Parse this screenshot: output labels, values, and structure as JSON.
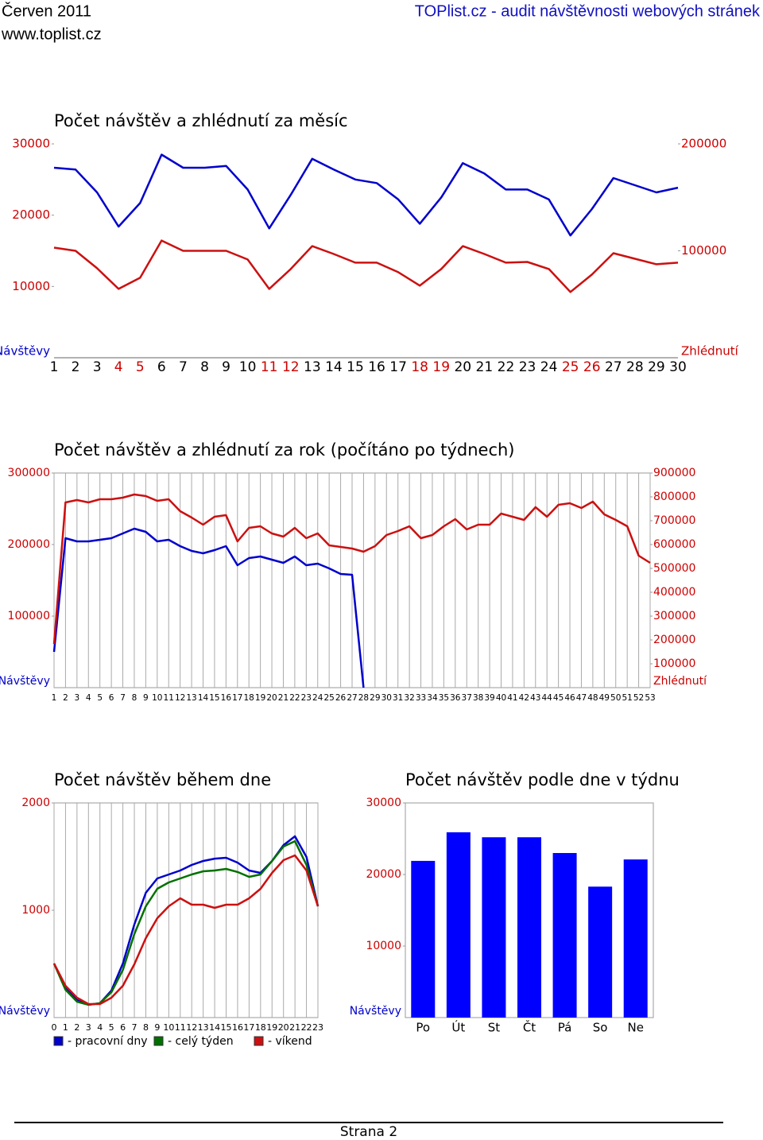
{
  "header": {
    "month": "Červen 2011",
    "site": "TOPlist.cz - audit návštěvnosti webových stránek",
    "url": "www.toplist.cz"
  },
  "footer": {
    "page": "Strana 2"
  },
  "chart_data": [
    {
      "type": "line",
      "title": "Počet návštěv a zhlédnutí za měsíc",
      "y_label": "Návštěvy",
      "y2_label": "Zhlédnutí",
      "categories": [
        "1",
        "2",
        "3",
        "4",
        "5",
        "6",
        "7",
        "8",
        "9",
        "10",
        "11",
        "12",
        "13",
        "14",
        "15",
        "16",
        "17",
        "18",
        "19",
        "20",
        "21",
        "22",
        "23",
        "24",
        "25",
        "26",
        "27",
        "28",
        "29",
        "30"
      ],
      "category_colors": [
        "#000",
        "#000",
        "#000",
        "#cc0000",
        "#cc0000",
        "#000",
        "#000",
        "#000",
        "#000",
        "#000",
        "#cc0000",
        "#cc0000",
        "#000",
        "#000",
        "#000",
        "#000",
        "#000",
        "#cc0000",
        "#cc0000",
        "#000",
        "#000",
        "#000",
        "#000",
        "#000",
        "#cc0000",
        "#cc0000",
        "#000",
        "#000",
        "#000",
        "#000"
      ],
      "ylim": [
        0,
        30000
      ],
      "yticks": [
        10000,
        20000,
        30000
      ],
      "y2lim": [
        0,
        200000
      ],
      "y2ticks": [
        100000,
        200000
      ],
      "grid": false,
      "series": [
        {
          "name": "Návštěvy",
          "color": "#0000cc",
          "values": [
            26650,
            26400,
            23200,
            18400,
            21700,
            28500,
            26650,
            26650,
            26900,
            23600,
            18150,
            22850,
            27900,
            26400,
            25000,
            24500,
            22200,
            18800,
            22500,
            27300,
            25850,
            23600,
            23600,
            22200,
            17150,
            20850,
            25200,
            24200,
            23200,
            23850
          ]
        },
        {
          "name": "Zhlédnutí",
          "color": "#cc1010",
          "axis": "y2",
          "values": [
            103000,
            100000,
            83700,
            64400,
            74800,
            109600,
            100000,
            100000,
            100000,
            91900,
            64400,
            83000,
            104400,
            97000,
            88900,
            88900,
            80000,
            67400,
            83000,
            104400,
            97000,
            88900,
            89600,
            83000,
            61500,
            77800,
            97800,
            92600,
            87400,
            88900
          ]
        }
      ]
    },
    {
      "type": "line",
      "title": "Počet návštěv a zhlédnutí za rok (počítáno po týdnech)",
      "y_label": "Návštěvy",
      "y2_label": "Zhlédnutí",
      "categories": [
        "1",
        "2",
        "3",
        "4",
        "5",
        "6",
        "7",
        "8",
        "9",
        "10",
        "11",
        "12",
        "13",
        "14",
        "15",
        "16",
        "17",
        "18",
        "19",
        "20",
        "21",
        "22",
        "23",
        "24",
        "25",
        "26",
        "27",
        "28",
        "29",
        "30",
        "31",
        "32",
        "33",
        "34",
        "35",
        "36",
        "37",
        "38",
        "39",
        "40",
        "41",
        "42",
        "43",
        "44",
        "45",
        "46",
        "47",
        "48",
        "49",
        "50",
        "51",
        "52",
        "53"
      ],
      "ylim": [
        0,
        300000
      ],
      "yticks": [
        100000,
        200000,
        300000
      ],
      "y2lim": [
        0,
        900000
      ],
      "y2ticks": [
        100000,
        200000,
        300000,
        400000,
        500000,
        600000,
        700000,
        800000,
        900000
      ],
      "grid": true,
      "series": [
        {
          "name": "Návštěvy",
          "color": "#0000cc",
          "values": [
            50000,
            208900,
            204400,
            204400,
            206700,
            208900,
            215600,
            222200,
            217800,
            204400,
            206700,
            197800,
            191100,
            187800,
            192200,
            197800,
            171100,
            181100,
            183300,
            178900,
            174400,
            183300,
            171100,
            173300,
            166700,
            158900,
            157800,
            0,
            null,
            null,
            null,
            null,
            null,
            null,
            null,
            null,
            null,
            null,
            null,
            null,
            null,
            null,
            null,
            null,
            null,
            null,
            null,
            null,
            null,
            null,
            null,
            null,
            null
          ]
        },
        {
          "name": "Zhlédnutí",
          "color": "#cc1010",
          "axis": "y2",
          "values": [
            183000,
            776700,
            786700,
            776700,
            790000,
            790000,
            796700,
            810000,
            803300,
            783300,
            790000,
            740000,
            713300,
            683300,
            716700,
            723300,
            613300,
            670000,
            676700,
            646700,
            633300,
            670000,
            626700,
            646700,
            596700,
            590000,
            583300,
            570000,
            593300,
            640000,
            656700,
            676700,
            626700,
            640000,
            676700,
            706700,
            663300,
            683300,
            683300,
            730000,
            716700,
            703300,
            756700,
            716700,
            766700,
            773300,
            753300,
            780000,
            726700,
            703300,
            676700,
            553300,
            523300
          ]
        }
      ]
    },
    {
      "type": "line",
      "title": "Počet návštěv během dne",
      "y_label": "Návštěvy",
      "categories": [
        "0",
        "1",
        "2",
        "3",
        "4",
        "5",
        "6",
        "7",
        "8",
        "9",
        "10",
        "11",
        "12",
        "13",
        "14",
        "15",
        "16",
        "17",
        "18",
        "19",
        "20",
        "21",
        "22",
        "23"
      ],
      "ylim": [
        0,
        2000
      ],
      "yticks": [
        1000,
        2000
      ],
      "grid": true,
      "legend": "bottom",
      "series": [
        {
          "name": "- pracovní dny",
          "color": "#0000cc",
          "values": [
            504,
            274,
            163,
            119,
            133,
            252,
            504,
            867,
            1163,
            1296,
            1333,
            1370,
            1422,
            1459,
            1481,
            1489,
            1444,
            1370,
            1348,
            1459,
            1607,
            1689,
            1496,
            1037
          ]
        },
        {
          "name": "- celý týden",
          "color": "#007000",
          "values": [
            504,
            259,
            148,
            119,
            133,
            237,
            444,
            778,
            1037,
            1200,
            1259,
            1296,
            1333,
            1363,
            1370,
            1385,
            1356,
            1311,
            1333,
            1459,
            1593,
            1644,
            1422,
            1037
          ]
        },
        {
          "name": "- víkend",
          "color": "#cc1010",
          "values": [
            504,
            296,
            185,
            126,
            126,
            185,
            296,
            496,
            741,
            926,
            1037,
            1111,
            1052,
            1052,
            1022,
            1052,
            1052,
            1111,
            1200,
            1348,
            1467,
            1511,
            1370,
            1037
          ]
        }
      ]
    },
    {
      "type": "bar",
      "title": "Počet návštěv podle dne v týdnu",
      "y_label": "Návštěvy",
      "categories": [
        "Po",
        "Út",
        "St",
        "Čt",
        "Pá",
        "So",
        "Ne"
      ],
      "color": "#0000ff",
      "values": [
        21900,
        25900,
        25200,
        25200,
        23000,
        18300,
        22100
      ],
      "ylim": [
        0,
        30000
      ],
      "yticks": [
        10000,
        20000,
        30000
      ],
      "grid": false
    }
  ]
}
